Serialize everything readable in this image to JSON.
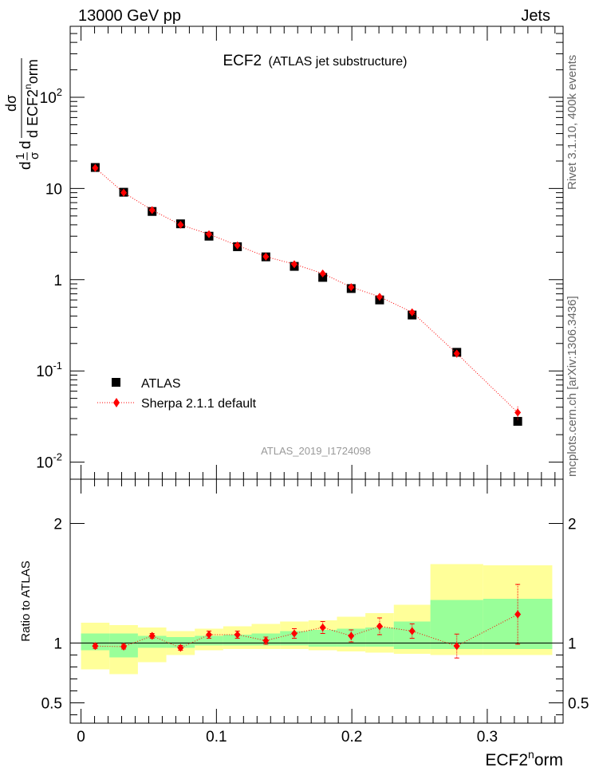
{
  "header": {
    "left": "13000 GeV pp",
    "right": "Jets"
  },
  "side_labels": {
    "top": "Rivet 3.1.10, 400k events",
    "bottom": "mcplots.cern.ch [arXiv:1306.3436]"
  },
  "plot": {
    "title": "ECF2",
    "subtitle": "(ATLAS jet substructure)",
    "analysis_id": "ATLAS_2019_I1724098"
  },
  "colors": {
    "mc": "#ff0000",
    "data": "#000000",
    "band_inner": "#99ff99",
    "band_outer": "#ffff99"
  },
  "chart_data": [
    {
      "type": "scatter",
      "title": "ECF2 (ATLAS jet substructure)",
      "ylabel": "1/σ dσ/d ECF2^norm",
      "yscale": "log",
      "ylim": [
        0.0065,
        600
      ],
      "xlim": [
        -0.008,
        0.356
      ],
      "y_ticks": [
        "10^-2",
        "10^-1",
        "1",
        "10",
        "10^2"
      ],
      "legend": {
        "position": "bottom-left",
        "entries": [
          "ATLAS",
          "Sherpa 2.1.1 default"
        ]
      },
      "series": [
        {
          "name": "ATLAS",
          "marker": "square",
          "x": [
            0.0105,
            0.0315,
            0.0525,
            0.0735,
            0.0945,
            0.1155,
            0.1365,
            0.1575,
            0.1785,
            0.1995,
            0.2205,
            0.2445,
            0.2775,
            0.3225
          ],
          "xerr": [
            0.0105,
            0.0105,
            0.0105,
            0.0105,
            0.0105,
            0.0105,
            0.0105,
            0.0105,
            0.0105,
            0.0105,
            0.0105,
            0.0135,
            0.0195,
            0.0255
          ],
          "values": [
            17.0,
            9.1,
            5.6,
            4.1,
            3.0,
            2.3,
            1.78,
            1.4,
            1.06,
            0.8,
            0.6,
            0.41,
            0.16,
            0.028
          ]
        },
        {
          "name": "Sherpa 2.1.1 default",
          "marker": "diamond",
          "x": [
            0.0105,
            0.0315,
            0.0525,
            0.0735,
            0.0945,
            0.1155,
            0.1365,
            0.1575,
            0.1785,
            0.1995,
            0.2205,
            0.2445,
            0.2775,
            0.3225
          ],
          "values": [
            16.8,
            9.0,
            5.8,
            4.0,
            3.15,
            2.38,
            1.79,
            1.48,
            1.17,
            0.83,
            0.65,
            0.44,
            0.155,
            0.035
          ],
          "yerr": [
            0.2,
            0.1,
            0.08,
            0.06,
            0.05,
            0.04,
            0.04,
            0.04,
            0.04,
            0.03,
            0.03,
            0.02,
            0.015,
            0.006
          ]
        }
      ]
    },
    {
      "type": "scatter",
      "xlabel": "ECF2^norm",
      "ylabel": "Ratio to ATLAS",
      "ylim": [
        0.33,
        2.37
      ],
      "xlim": [
        -0.008,
        0.356
      ],
      "x_ticks": [
        "0",
        "0.1",
        "0.2",
        "0.3"
      ],
      "y_ticks": [
        "0.5",
        "1",
        "2"
      ],
      "bands": {
        "edges": [
          0,
          0.021,
          0.042,
          0.063,
          0.084,
          0.105,
          0.126,
          0.147,
          0.168,
          0.189,
          0.21,
          0.231,
          0.258,
          0.297,
          0.348
        ],
        "inner_low": [
          0.94,
          0.88,
          0.96,
          0.96,
          0.98,
          0.98,
          0.98,
          0.98,
          0.97,
          0.97,
          0.97,
          0.95,
          0.95,
          0.95
        ],
        "inner_high": [
          1.08,
          1.08,
          1.06,
          1.05,
          1.06,
          1.07,
          1.08,
          1.1,
          1.11,
          1.12,
          1.13,
          1.18,
          1.36,
          1.37
        ],
        "outer_low": [
          0.78,
          0.74,
          0.84,
          0.9,
          0.94,
          0.95,
          0.95,
          0.95,
          0.94,
          0.93,
          0.92,
          0.91,
          0.9,
          0.9
        ],
        "outer_high": [
          1.17,
          1.15,
          1.13,
          1.1,
          1.12,
          1.14,
          1.16,
          1.18,
          1.19,
          1.22,
          1.25,
          1.32,
          1.66,
          1.65
        ]
      },
      "series": [
        {
          "name": "Sherpa 2.1.1 default / ATLAS",
          "marker": "diamond",
          "x": [
            0.0105,
            0.0315,
            0.0525,
            0.0735,
            0.0945,
            0.1155,
            0.1365,
            0.1575,
            0.1785,
            0.1995,
            0.2205,
            0.2445,
            0.2775,
            0.3225
          ],
          "values": [
            0.975,
            0.97,
            1.06,
            0.96,
            1.07,
            1.07,
            1.02,
            1.08,
            1.13,
            1.06,
            1.14,
            1.1,
            0.975,
            1.24
          ],
          "yerr": [
            0.02,
            0.02,
            0.02,
            0.02,
            0.03,
            0.03,
            0.03,
            0.04,
            0.05,
            0.05,
            0.07,
            0.06,
            0.1,
            0.25
          ]
        }
      ]
    }
  ]
}
